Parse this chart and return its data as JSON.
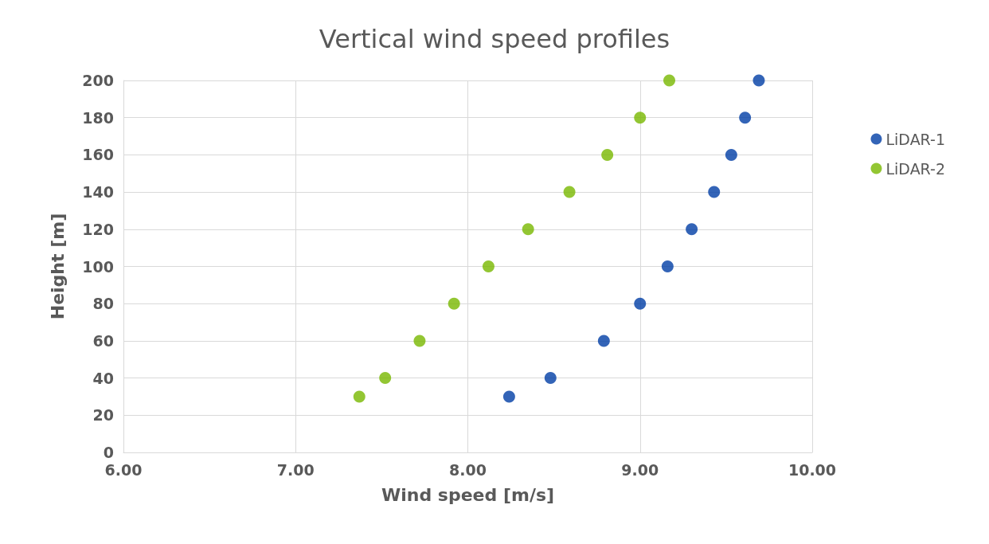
{
  "chart_data": {
    "type": "scatter",
    "title": "Vertical wind speed profiles",
    "xlabel": "Wind speed [m/s]",
    "ylabel": "Height [m]",
    "series": [
      {
        "name": "LiDAR-1",
        "color": "#003da5",
        "x": [
          8.24,
          8.48,
          8.79,
          9.0,
          9.16,
          9.3,
          9.43,
          9.53,
          9.61,
          9.69
        ],
        "values": [
          30,
          40,
          60,
          80,
          100,
          120,
          140,
          160,
          180,
          200
        ]
      },
      {
        "name": "LiDAR-2",
        "color": "#78b800",
        "x": [
          7.37,
          7.52,
          7.72,
          7.92,
          8.12,
          8.35,
          8.59,
          8.81,
          9.0,
          9.17
        ],
        "values": [
          30,
          40,
          60,
          80,
          100,
          120,
          140,
          160,
          180,
          200
        ]
      }
    ],
    "xlim": [
      6,
      10
    ],
    "xticks": [
      {
        "value": 6,
        "label": "6.00"
      },
      {
        "value": 7,
        "label": "7.00"
      },
      {
        "value": 8,
        "label": "8.00"
      },
      {
        "value": 9,
        "label": "9.00"
      },
      {
        "value": 10,
        "label": "10.00"
      }
    ],
    "ylim": [
      0,
      200
    ],
    "yticks": [
      0,
      20,
      40,
      60,
      80,
      100,
      120,
      140,
      160,
      180,
      200
    ],
    "grid": true,
    "legend": "right",
    "marker": "circle"
  }
}
